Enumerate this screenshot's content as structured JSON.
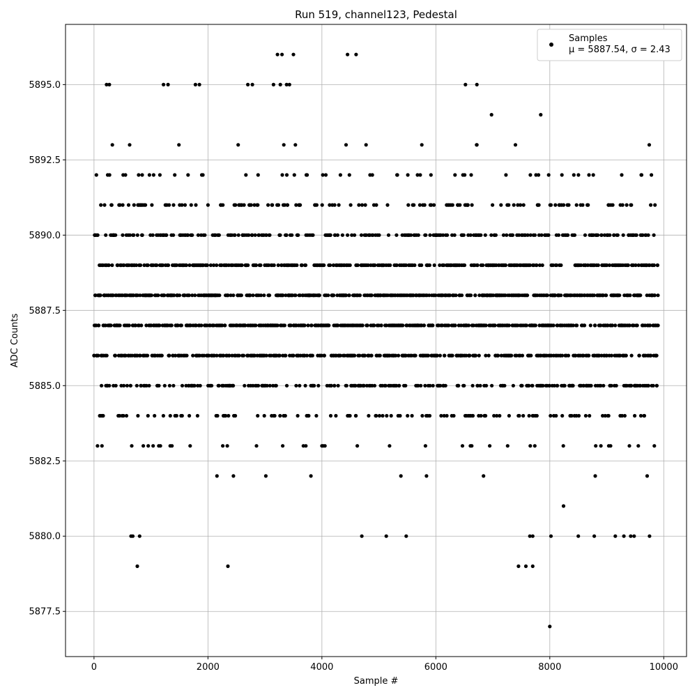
{
  "chart_data": {
    "type": "scatter",
    "title": "Run 519, channel123, Pedestal",
    "xlabel": "Sample #",
    "ylabel": "ADC Counts",
    "xlim": [
      -500,
      10400
    ],
    "ylim": [
      5876.0,
      5897.0
    ],
    "xticks": [
      0,
      2000,
      4000,
      6000,
      8000,
      10000
    ],
    "xtick_labels": [
      "0",
      "2000",
      "4000",
      "6000",
      "8000",
      "10000"
    ],
    "yticks": [
      5877.5,
      5880.0,
      5882.5,
      5885.0,
      5887.5,
      5890.0,
      5892.5,
      5895.0
    ],
    "ytick_labels": [
      "5877.5",
      "5880.0",
      "5882.5",
      "5885.0",
      "5887.5",
      "5890.0",
      "5892.5",
      "5895.0"
    ],
    "grid": true,
    "legend": {
      "placement": "top-right",
      "entries": [
        {
          "marker": "dot",
          "line1": "Samples",
          "line2": "μ = 5887.54, σ = 2.43"
        }
      ]
    },
    "marker_color": "#000000",
    "series": [
      {
        "name": "Samples",
        "mean": 5887.54,
        "std": 2.43,
        "x_range": [
          0,
          9900
        ],
        "points_outliers": [
          [
            8000,
            5877
          ],
          [
            760,
            5879
          ],
          [
            2350,
            5879
          ],
          [
            7450,
            5879
          ],
          [
            7580,
            5879
          ],
          [
            7700,
            5879
          ],
          [
            650,
            5880
          ],
          [
            680,
            5880
          ],
          [
            800,
            5880
          ],
          [
            4700,
            5880
          ],
          [
            5130,
            5880
          ],
          [
            5480,
            5880
          ],
          [
            7650,
            5880
          ],
          [
            7700,
            5880
          ],
          [
            8020,
            5880
          ],
          [
            8500,
            5880
          ],
          [
            8780,
            5880
          ],
          [
            9150,
            5880
          ],
          [
            9300,
            5880
          ],
          [
            9420,
            5880
          ],
          [
            9480,
            5880
          ],
          [
            9750,
            5880
          ],
          [
            3220,
            5896
          ],
          [
            3300,
            5896
          ],
          [
            3500,
            5896
          ],
          [
            4450,
            5896
          ],
          [
            4600,
            5896
          ],
          [
            220,
            5895
          ],
          [
            270,
            5895
          ],
          [
            1220,
            5895
          ],
          [
            1300,
            5895
          ],
          [
            1780,
            5895
          ],
          [
            1850,
            5895
          ],
          [
            2700,
            5895
          ],
          [
            2780,
            5895
          ],
          [
            3150,
            5895
          ],
          [
            3270,
            5895
          ],
          [
            3380,
            5895
          ],
          [
            3430,
            5895
          ],
          [
            6520,
            5895
          ],
          [
            6720,
            5895
          ]
        ]
      }
    ]
  }
}
